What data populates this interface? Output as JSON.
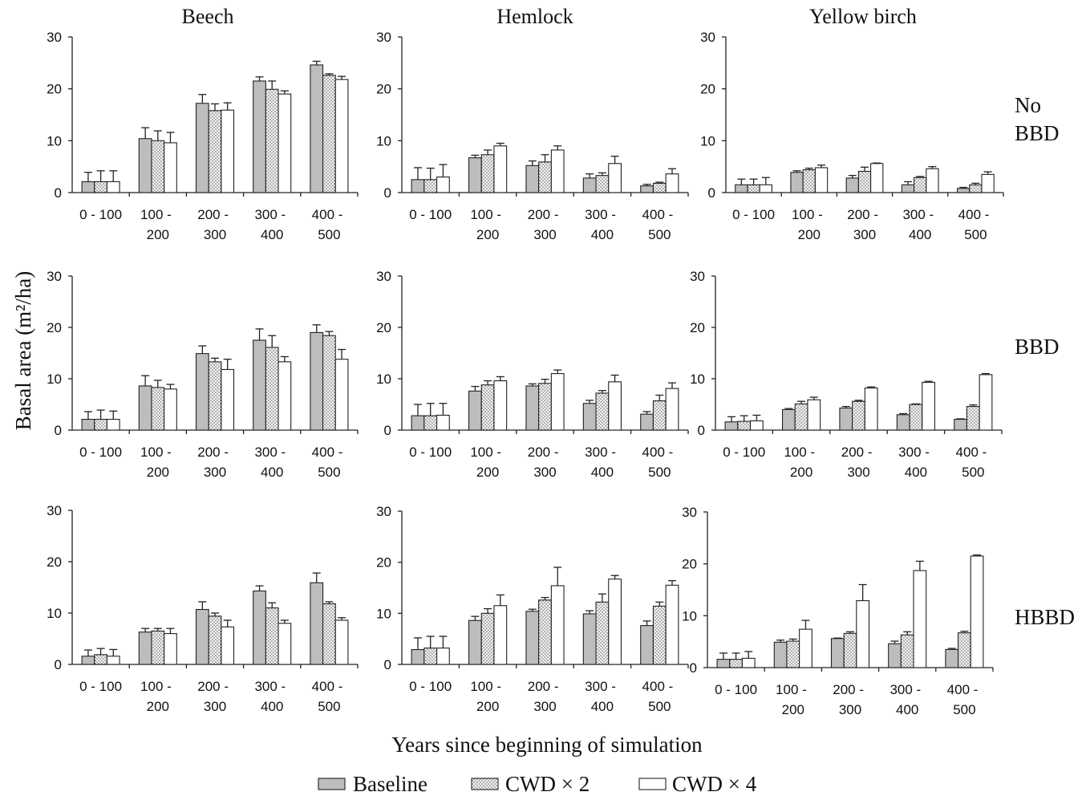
{
  "figure": {
    "column_titles": [
      "Beech",
      "Hemlock",
      "Yellow birch"
    ],
    "row_labels": [
      [
        "No",
        "BBD"
      ],
      [
        "BBD"
      ],
      [
        "HBBD"
      ]
    ],
    "ylabel": "Basal area (m²/ha)",
    "xlabel": "Years since beginning of simulation",
    "legend": [
      "Baseline",
      "CWD × 2",
      "CWD × 4"
    ],
    "legend_position": "bottom",
    "series_style": [
      {
        "fill": "#bdbdbd",
        "pattern": false
      },
      {
        "fill": "#ffffff",
        "pattern": true
      },
      {
        "fill": "#ffffff",
        "pattern": false
      }
    ]
  },
  "chart_data": [
    {
      "type": "bar",
      "categories": [
        "0 - 100",
        "100 - 200",
        "200 - 300",
        "300 - 400",
        "400 - 500"
      ],
      "ylim": [
        0,
        30
      ],
      "yticks": [
        0,
        10,
        20,
        30
      ],
      "grid": false,
      "series": [
        {
          "name": "Baseline",
          "values": [
            2.1,
            10.4,
            17.2,
            21.5,
            24.6
          ],
          "errors": [
            1.8,
            2.1,
            1.7,
            0.8,
            0.7
          ]
        },
        {
          "name": "CWD × 2",
          "values": [
            2.1,
            10.0,
            15.8,
            19.9,
            22.6
          ],
          "errors": [
            2.1,
            1.9,
            1.3,
            1.6,
            0.3
          ]
        },
        {
          "name": "CWD × 4",
          "values": [
            2.1,
            9.6,
            15.9,
            19.0,
            21.8
          ],
          "errors": [
            2.1,
            2.0,
            1.4,
            0.6,
            0.6
          ]
        }
      ]
    },
    {
      "type": "bar",
      "categories": [
        "0 - 100",
        "100 - 200",
        "200 - 300",
        "300 - 400",
        "400 - 500"
      ],
      "ylim": [
        0,
        30
      ],
      "yticks": [
        0,
        10,
        20,
        30
      ],
      "grid": false,
      "series": [
        {
          "name": "Baseline",
          "values": [
            2.5,
            6.7,
            5.2,
            2.8,
            1.3
          ],
          "errors": [
            2.3,
            0.5,
            0.9,
            0.8,
            0.3
          ]
        },
        {
          "name": "CWD × 2",
          "values": [
            2.5,
            7.3,
            5.9,
            3.3,
            1.8
          ],
          "errors": [
            2.2,
            0.9,
            1.4,
            0.5,
            0.2
          ]
        },
        {
          "name": "CWD × 4",
          "values": [
            3.0,
            9.0,
            8.2,
            5.6,
            3.6
          ],
          "errors": [
            2.4,
            0.5,
            0.8,
            1.4,
            1.0
          ]
        }
      ]
    },
    {
      "type": "bar",
      "categories": [
        "0 - 100",
        "100 - 200",
        "200 - 300",
        "300 - 400",
        "400 - 500"
      ],
      "ylim": [
        0,
        30
      ],
      "yticks": [
        0,
        10,
        20,
        30
      ],
      "grid": false,
      "series": [
        {
          "name": "Baseline",
          "values": [
            1.5,
            3.9,
            2.8,
            1.5,
            0.8
          ],
          "errors": [
            1.1,
            0.3,
            0.5,
            0.6,
            0.2
          ]
        },
        {
          "name": "CWD × 2",
          "values": [
            1.5,
            4.4,
            4.1,
            2.9,
            1.5
          ],
          "errors": [
            1.1,
            0.3,
            0.8,
            0.2,
            0.3
          ]
        },
        {
          "name": "CWD × 4",
          "values": [
            1.5,
            4.8,
            5.6,
            4.6,
            3.5
          ],
          "errors": [
            1.4,
            0.5,
            0.1,
            0.4,
            0.5
          ]
        }
      ]
    },
    {
      "type": "bar",
      "categories": [
        "0 - 100",
        "100 - 200",
        "200 - 300",
        "300 - 400",
        "400 - 500"
      ],
      "ylim": [
        0,
        30
      ],
      "yticks": [
        0,
        10,
        20,
        30
      ],
      "grid": false,
      "series": [
        {
          "name": "Baseline",
          "values": [
            2.1,
            8.6,
            14.9,
            17.5,
            19.0
          ],
          "errors": [
            1.5,
            2.0,
            1.5,
            2.2,
            1.5
          ]
        },
        {
          "name": "CWD × 2",
          "values": [
            2.1,
            8.3,
            13.3,
            16.1,
            18.4
          ],
          "errors": [
            1.8,
            1.4,
            0.7,
            2.3,
            0.8
          ]
        },
        {
          "name": "CWD × 4",
          "values": [
            2.1,
            8.0,
            11.8,
            13.3,
            13.8
          ],
          "errors": [
            1.6,
            0.9,
            2.0,
            1.0,
            1.9
          ]
        }
      ]
    },
    {
      "type": "bar",
      "categories": [
        "0 - 100",
        "100 - 200",
        "200 - 300",
        "300 - 400",
        "400 - 500"
      ],
      "ylim": [
        0,
        30
      ],
      "yticks": [
        0,
        10,
        20,
        30
      ],
      "grid": false,
      "series": [
        {
          "name": "Baseline",
          "values": [
            2.8,
            7.6,
            8.6,
            5.2,
            3.1
          ],
          "errors": [
            2.2,
            0.9,
            0.4,
            0.6,
            0.5
          ]
        },
        {
          "name": "CWD × 2",
          "values": [
            2.8,
            8.8,
            9.1,
            7.2,
            5.7
          ],
          "errors": [
            2.4,
            0.8,
            0.8,
            0.5,
            1.1
          ]
        },
        {
          "name": "CWD × 4",
          "values": [
            2.9,
            9.6,
            11.0,
            9.4,
            8.1
          ],
          "errors": [
            2.3,
            0.8,
            0.7,
            1.3,
            1.1
          ]
        }
      ]
    },
    {
      "type": "bar",
      "categories": [
        "0 - 100",
        "100 - 200",
        "200 - 300",
        "300 - 400",
        "400 - 500"
      ],
      "ylim": [
        0,
        30
      ],
      "yticks": [
        0,
        10,
        20,
        30
      ],
      "grid": false,
      "series": [
        {
          "name": "Baseline",
          "values": [
            1.6,
            4.0,
            4.3,
            3.0,
            2.1
          ],
          "errors": [
            1.0,
            0.2,
            0.3,
            0.2,
            0.1
          ]
        },
        {
          "name": "CWD × 2",
          "values": [
            1.7,
            5.1,
            5.6,
            5.0,
            4.6
          ],
          "errors": [
            1.1,
            0.5,
            0.2,
            0.1,
            0.3
          ]
        },
        {
          "name": "CWD × 4",
          "values": [
            1.8,
            5.9,
            8.2,
            9.3,
            10.8
          ],
          "errors": [
            1.1,
            0.5,
            0.2,
            0.2,
            0.2
          ]
        }
      ]
    },
    {
      "type": "bar",
      "categories": [
        "0 - 100",
        "100 - 200",
        "200 - 300",
        "300 - 400",
        "400 - 500"
      ],
      "ylim": [
        0,
        30
      ],
      "yticks": [
        0,
        10,
        20,
        30
      ],
      "grid": false,
      "series": [
        {
          "name": "Baseline",
          "values": [
            1.6,
            6.3,
            10.7,
            14.3,
            15.9
          ],
          "errors": [
            1.2,
            0.7,
            1.5,
            1.0,
            1.9
          ]
        },
        {
          "name": "CWD × 2",
          "values": [
            1.9,
            6.5,
            9.4,
            11.0,
            11.8
          ],
          "errors": [
            1.2,
            0.5,
            0.6,
            1.0,
            0.4
          ]
        },
        {
          "name": "CWD × 4",
          "values": [
            1.6,
            6.0,
            7.3,
            8.0,
            8.6
          ],
          "errors": [
            1.3,
            1.0,
            1.3,
            0.6,
            0.5
          ]
        }
      ]
    },
    {
      "type": "bar",
      "categories": [
        "0 - 100",
        "100 - 200",
        "200 - 300",
        "300 - 400",
        "400 - 500"
      ],
      "ylim": [
        0,
        30
      ],
      "yticks": [
        0,
        10,
        20,
        30
      ],
      "grid": false,
      "series": [
        {
          "name": "Baseline",
          "values": [
            2.9,
            8.6,
            10.4,
            9.9,
            7.6
          ],
          "errors": [
            2.3,
            0.8,
            0.4,
            0.6,
            0.9
          ]
        },
        {
          "name": "CWD × 2",
          "values": [
            3.2,
            10.0,
            12.6,
            12.2,
            11.4
          ],
          "errors": [
            2.3,
            0.9,
            0.5,
            1.6,
            0.8
          ]
        },
        {
          "name": "CWD × 4",
          "values": [
            3.2,
            11.5,
            15.4,
            16.7,
            15.5
          ],
          "errors": [
            2.3,
            2.1,
            3.6,
            0.7,
            0.9
          ]
        }
      ]
    },
    {
      "type": "bar",
      "categories": [
        "0 - 100",
        "100 - 200",
        "200 - 300",
        "300 - 400",
        "400 - 500"
      ],
      "ylim": [
        0,
        30
      ],
      "yticks": [
        0,
        10,
        20,
        30
      ],
      "grid": false,
      "series": [
        {
          "name": "Baseline",
          "values": [
            1.6,
            4.9,
            5.6,
            4.6,
            3.5
          ],
          "errors": [
            1.2,
            0.4,
            0.1,
            0.5,
            0.2
          ]
        },
        {
          "name": "CWD × 2",
          "values": [
            1.6,
            5.1,
            6.6,
            6.3,
            6.7
          ],
          "errors": [
            1.2,
            0.4,
            0.3,
            0.6,
            0.3
          ]
        },
        {
          "name": "CWD × 4",
          "values": [
            1.8,
            7.4,
            12.9,
            18.7,
            21.5
          ],
          "errors": [
            1.3,
            1.7,
            3.1,
            1.8,
            0.2
          ]
        }
      ]
    }
  ]
}
